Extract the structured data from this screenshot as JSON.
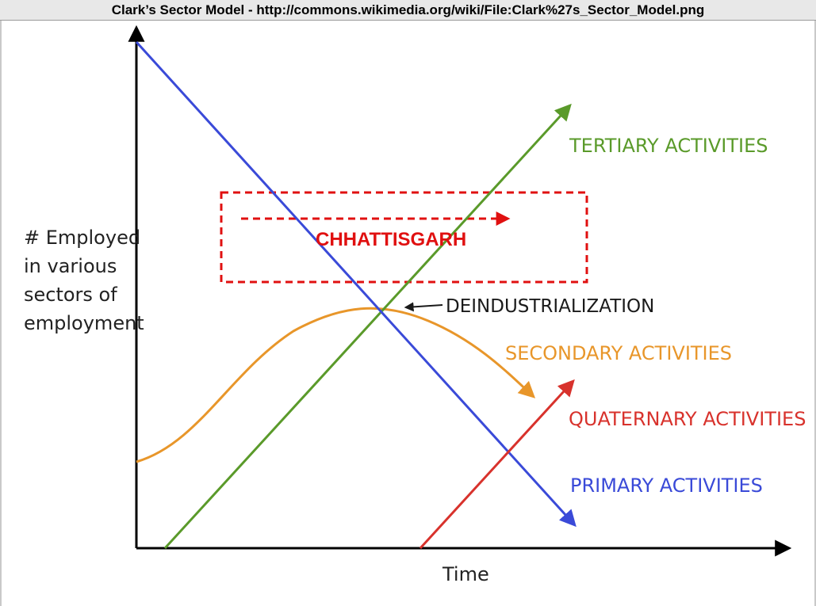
{
  "header": {
    "title": "Clark’s Sector Model - http://commons.wikimedia.org/wiki/File:Clark%27s_Sector_Model.png"
  },
  "diagram": {
    "y_axis_label": [
      "# Employed",
      "in various",
      "sectors of",
      "employment"
    ],
    "x_axis_label": "Time",
    "series": [
      {
        "label": "TERTIARY ACTIVITIES",
        "color": "#5a9a2a"
      },
      {
        "label": "SECONDARY ACTIVITIES",
        "color": "#e8962a"
      },
      {
        "label": "QUATERNARY ACTIVITIES",
        "color": "#d8322c"
      },
      {
        "label": "PRIMARY ACTIVITIES",
        "color": "#3a4ad8"
      }
    ],
    "annotation": {
      "label": "DEINDUSTRIALIZATION",
      "color": "#1a1a1a"
    },
    "highlight": {
      "label": "CHHATTISGARH",
      "color": "#e01010"
    },
    "axis_color": "#000000"
  }
}
